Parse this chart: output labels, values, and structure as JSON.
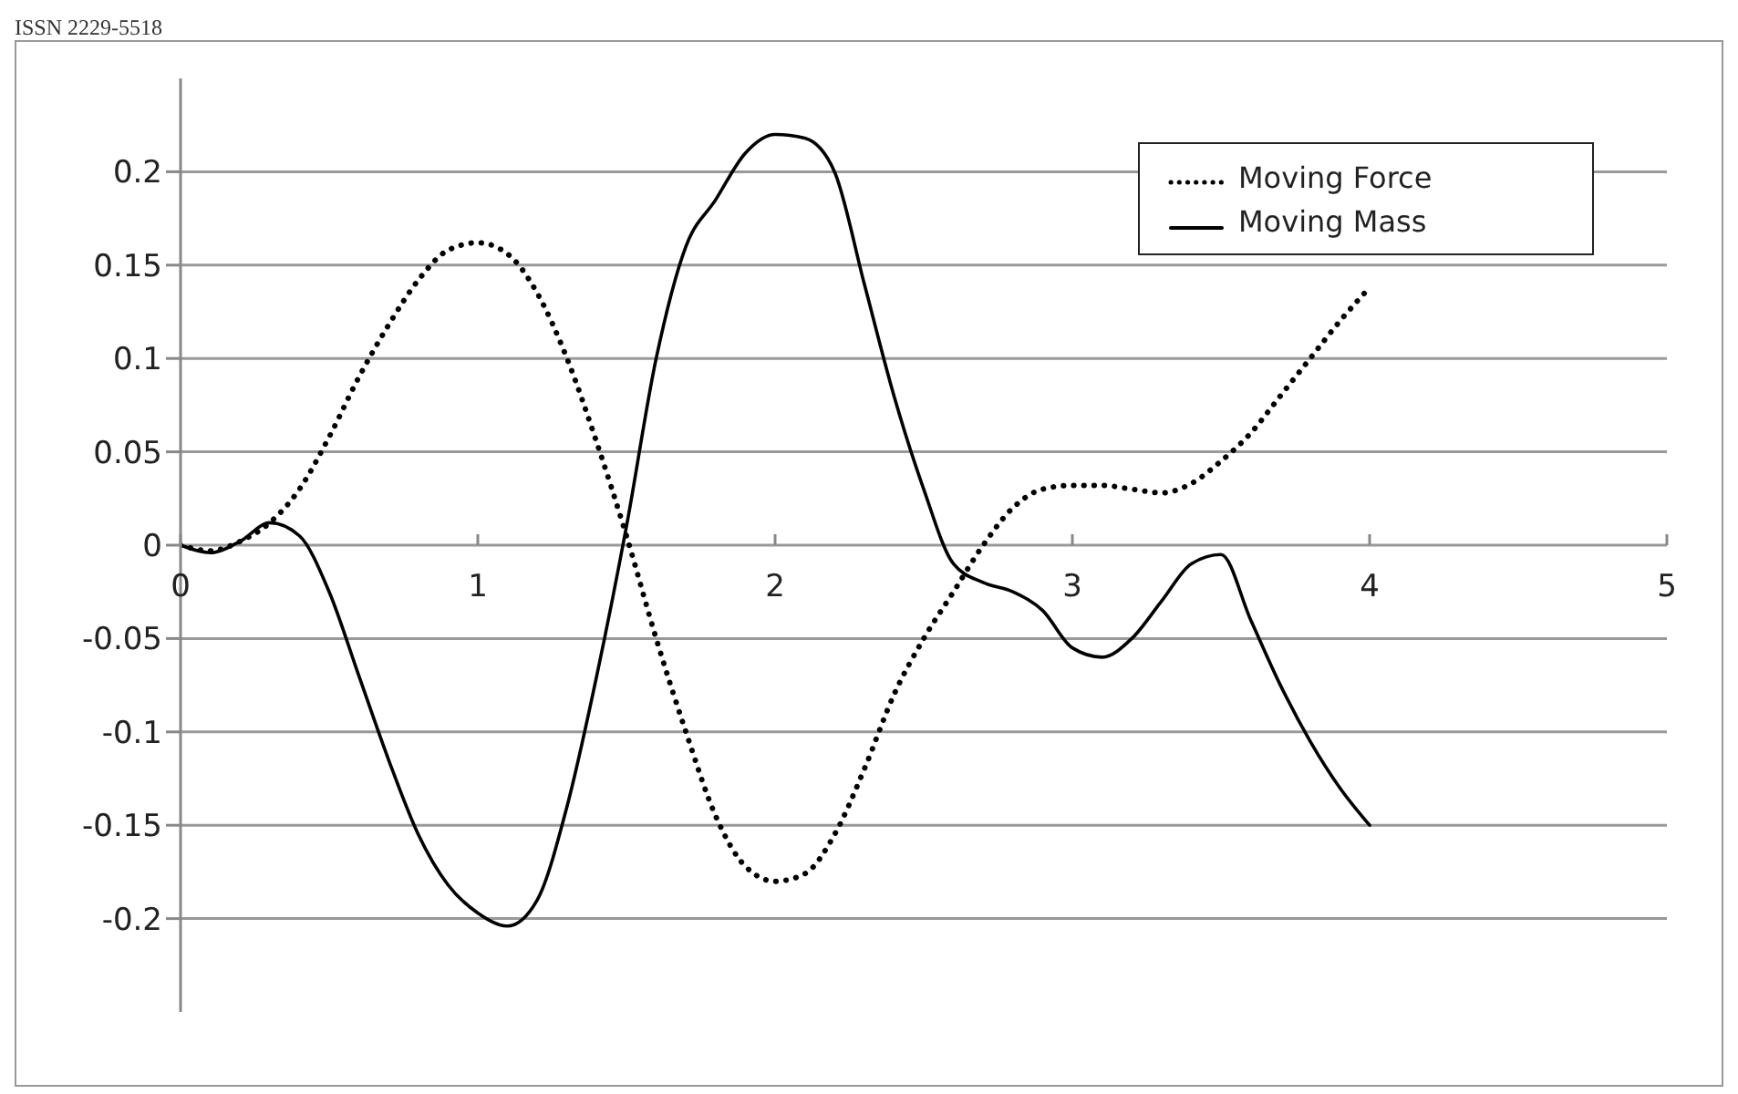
{
  "chart_data": {
    "type": "line",
    "annotations": [
      "ISSN 2229-5518"
    ],
    "x": [
      0,
      0.1,
      0.2,
      0.3,
      0.4,
      0.5,
      0.6,
      0.7,
      0.8,
      0.9,
      1.0,
      1.1,
      1.2,
      1.3,
      1.4,
      1.5,
      1.6,
      1.7,
      1.8,
      1.9,
      2.0,
      2.1,
      2.2,
      2.3,
      2.4,
      2.5,
      2.6,
      2.7,
      2.8,
      2.9,
      3.0,
      3.1,
      3.2,
      3.3,
      3.4,
      3.5,
      3.6,
      3.7,
      3.8,
      3.9,
      4.0
    ],
    "series": [
      {
        "name": "Moving Force",
        "color": "#000000",
        "line_style": "dotted",
        "values": [
          0,
          -0.003,
          0.002,
          0.012,
          0.03,
          0.058,
          0.09,
          0.118,
          0.142,
          0.158,
          0.162,
          0.156,
          0.135,
          0.1,
          0.055,
          0.005,
          -0.05,
          -0.1,
          -0.145,
          -0.172,
          -0.18,
          -0.176,
          -0.155,
          -0.12,
          -0.08,
          -0.05,
          -0.025,
          0,
          0.02,
          0.03,
          0.032,
          0.032,
          0.03,
          0.028,
          0.033,
          0.045,
          0.06,
          0.08,
          0.1,
          0.12,
          0.138
        ]
      },
      {
        "name": "Moving Mass",
        "color": "#000000",
        "line_style": "solid",
        "values": [
          0,
          -0.004,
          0.002,
          0.012,
          0.005,
          -0.025,
          -0.07,
          -0.115,
          -0.155,
          -0.182,
          -0.197,
          -0.204,
          -0.19,
          -0.14,
          -0.07,
          0.01,
          0.1,
          0.16,
          0.185,
          0.21,
          0.22,
          0.218,
          0.2,
          0.14,
          0.08,
          0.03,
          -0.01,
          -0.02,
          -0.025,
          -0.035,
          -0.055,
          -0.06,
          -0.05,
          -0.03,
          -0.01,
          -0.005,
          -0.04,
          -0.075,
          -0.105,
          -0.13,
          -0.15
        ]
      }
    ],
    "xlim": [
      0,
      5
    ],
    "xticks": [
      0,
      1,
      2,
      3,
      4,
      5
    ],
    "ylim": [
      -0.25,
      0.25
    ],
    "yticks": [
      -0.2,
      -0.15,
      -0.1,
      -0.05,
      0,
      0.05,
      0.1,
      0.15,
      0.2
    ],
    "grid": "y",
    "legend": "top right",
    "marker": "none"
  }
}
